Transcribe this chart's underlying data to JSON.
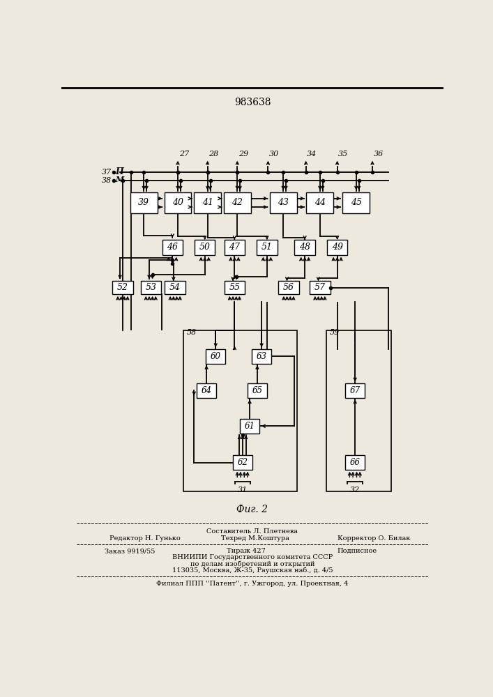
{
  "patent_num": "983638",
  "fig_label": "Фиг. 2",
  "bg": "#ede9df",
  "r1_labels": [
    "39",
    "40",
    "41",
    "42",
    "43",
    "44",
    "45"
  ],
  "r2_labels": [
    "46",
    "50",
    "47",
    "51",
    "48",
    "49"
  ],
  "r3_labels": [
    "52",
    "53",
    "54",
    "55",
    "56",
    "57"
  ],
  "out_labels": [
    "27",
    "28",
    "29",
    "30",
    "34",
    "35",
    "36"
  ],
  "inner58_labels": [
    "60",
    "63",
    "64",
    "65",
    "61",
    "62"
  ],
  "inner59_labels": [
    "67",
    "66"
  ]
}
